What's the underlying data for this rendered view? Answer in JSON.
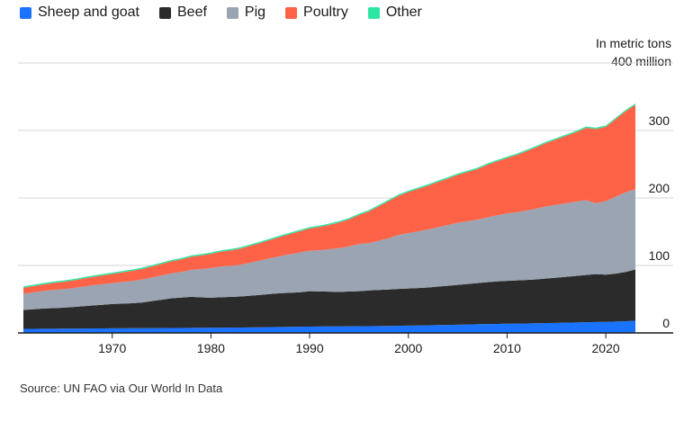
{
  "legend": [
    {
      "label": "Sheep and goat",
      "color": "#1a73ff"
    },
    {
      "label": "Beef",
      "color": "#2b2b2b"
    },
    {
      "label": "Pig",
      "color": "#9aa4b2"
    },
    {
      "label": "Poultry",
      "color": "#ff6347"
    },
    {
      "label": "Other",
      "color": "#2ee6a3"
    }
  ],
  "unit_note": {
    "line1": "In metric tons",
    "line2": "400 million"
  },
  "source": "Source: UN FAO via Our World In Data",
  "chart_data": {
    "type": "area",
    "stacked": true,
    "title": "",
    "xlabel": "",
    "ylabel": "In metric tons",
    "xlim": [
      1961,
      2023
    ],
    "ylim": [
      0,
      400
    ],
    "y_ticks": [
      0,
      100,
      200,
      300,
      400
    ],
    "y_tick_labels": [
      "0",
      "100",
      "200",
      "300",
      "400 million"
    ],
    "x_ticks": [
      1970,
      1980,
      1990,
      2000,
      2010,
      2020
    ],
    "grid": "horizontal",
    "legend_position": "top-left",
    "x": [
      1961,
      1962,
      1963,
      1964,
      1965,
      1966,
      1967,
      1968,
      1969,
      1970,
      1971,
      1972,
      1973,
      1974,
      1975,
      1976,
      1977,
      1978,
      1979,
      1980,
      1981,
      1982,
      1983,
      1984,
      1985,
      1986,
      1987,
      1988,
      1989,
      1990,
      1991,
      1992,
      1993,
      1994,
      1995,
      1996,
      1997,
      1998,
      1999,
      2000,
      2001,
      2002,
      2003,
      2004,
      2005,
      2006,
      2007,
      2008,
      2009,
      2010,
      2011,
      2012,
      2013,
      2014,
      2015,
      2016,
      2017,
      2018,
      2019,
      2020,
      2021,
      2022,
      2023
    ],
    "series": [
      {
        "name": "Sheep and goat",
        "color": "#1a73ff",
        "values": [
          6,
          6,
          6.1,
          6.2,
          6.3,
          6.4,
          6.5,
          6.6,
          6.7,
          6.8,
          6.9,
          7,
          7,
          7.1,
          7.2,
          7.3,
          7.4,
          7.5,
          7.6,
          7.7,
          7.8,
          7.9,
          8,
          8.2,
          8.4,
          8.6,
          8.8,
          9,
          9.2,
          9.4,
          9.5,
          9.6,
          9.7,
          9.8,
          9.9,
          10,
          10.2,
          10.4,
          10.6,
          10.8,
          11,
          11.3,
          11.6,
          11.9,
          12.2,
          12.5,
          12.8,
          13.1,
          13.4,
          13.6,
          13.8,
          14,
          14.3,
          14.6,
          14.9,
          15.2,
          15.5,
          15.8,
          16.1,
          16.4,
          16.8,
          17.4,
          18
        ]
      },
      {
        "name": "Beef",
        "color": "#2b2b2b",
        "values": [
          28,
          29,
          30,
          30.5,
          31,
          32,
          33,
          34,
          35,
          36,
          36.5,
          37,
          38,
          40,
          42,
          44,
          45,
          46,
          45,
          44.5,
          45,
          45.5,
          46,
          47,
          48,
          49,
          50,
          50.5,
          51,
          52.5,
          52,
          51.5,
          51,
          51.5,
          52,
          53,
          53.5,
          54,
          54.5,
          55,
          55.5,
          56,
          57,
          58,
          59,
          60,
          61,
          62,
          63,
          63.5,
          64,
          64.5,
          65,
          66,
          67,
          68,
          69,
          70,
          71,
          70,
          71,
          73,
          76
        ]
      },
      {
        "name": "Pig",
        "color": "#9aa4b2",
        "values": [
          24,
          25,
          26,
          27,
          27.5,
          28,
          29,
          30,
          30.5,
          31,
          32,
          33,
          34,
          35,
          36,
          37,
          38,
          40,
          42,
          44,
          45.5,
          46,
          47,
          49,
          51,
          53,
          55,
          57,
          59,
          60,
          61,
          63,
          65,
          67,
          70,
          70,
          73,
          76,
          80,
          82,
          84,
          86,
          88,
          90,
          92,
          93,
          94,
          96,
          98,
          100,
          101,
          103,
          105,
          107,
          108,
          109,
          110,
          111,
          105,
          109,
          114,
          118,
          119
        ]
      },
      {
        "name": "Poultry",
        "color": "#ff6347",
        "values": [
          9,
          9.3,
          9.8,
          10.3,
          10.8,
          11.3,
          11.8,
          12.4,
          13,
          13.6,
          14.3,
          15,
          15.6,
          16.3,
          17,
          17.8,
          18.6,
          19.4,
          20.2,
          21,
          22,
          23,
          24,
          25,
          26,
          27.2,
          28.5,
          30,
          31.5,
          33,
          34.5,
          36,
          38,
          40,
          43,
          47,
          51,
          55,
          58,
          61,
          63,
          65,
          67,
          69,
          71,
          73,
          75,
          78,
          80,
          82,
          85,
          88,
          91,
          94,
          97,
          100,
          103,
          107,
          110,
          110,
          115,
          120,
          125
        ]
      },
      {
        "name": "Other",
        "color": "#2ee6a3",
        "values": [
          2,
          2,
          2,
          2,
          2,
          2,
          2,
          2,
          2,
          2,
          2,
          2,
          2,
          2,
          2,
          2,
          2,
          2,
          2,
          2,
          2,
          2,
          2,
          2,
          2,
          2,
          2,
          2,
          2,
          2,
          2,
          2,
          2,
          2,
          2,
          2,
          2,
          2,
          2,
          2,
          2,
          2,
          2,
          2,
          2,
          2,
          2,
          2,
          2,
          2,
          2,
          2,
          2,
          2,
          2,
          2,
          2,
          2,
          2,
          2,
          2,
          2,
          2
        ]
      }
    ]
  }
}
